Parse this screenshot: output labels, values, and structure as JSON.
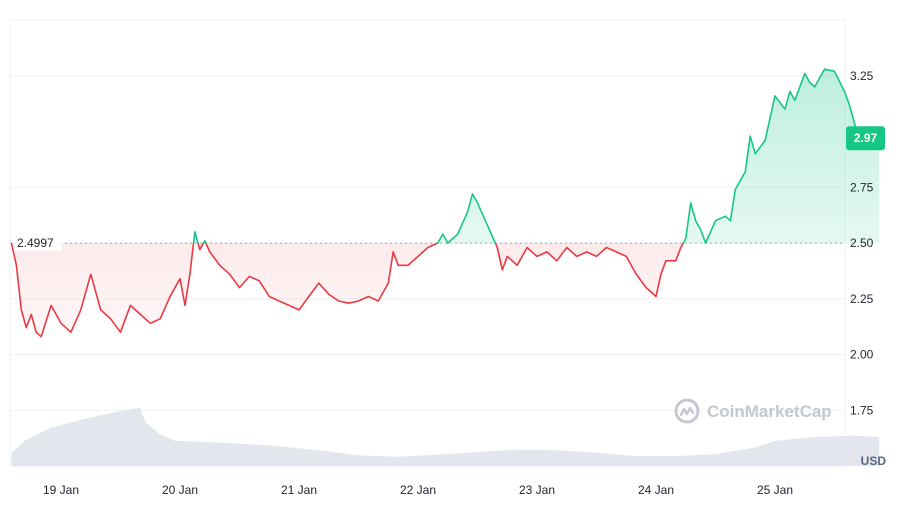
{
  "chart_data": {
    "type": "line",
    "title": "",
    "xlabel": "",
    "ylabel": "",
    "currency": "USD",
    "x_ticks": [
      "19 Jan",
      "20 Jan",
      "21 Jan",
      "22 Jan",
      "23 Jan",
      "24 Jan",
      "25 Jan"
    ],
    "y_ticks": [
      "1.75",
      "2.00",
      "2.25",
      "2.50",
      "2.75",
      "3.25"
    ],
    "ylim": [
      1.5,
      3.5
    ],
    "reference_price": 2.4997,
    "reference_label": "2.4997",
    "current_price": 2.97,
    "current_label": "2.97",
    "grid": true,
    "colors": {
      "up": "#16c784",
      "down": "#ea3943",
      "volume": "#e3e6ec",
      "grid": "#eff2f5",
      "watermark": "#c3c8d2"
    },
    "series": [
      {
        "points": [
          [
            "18 Jan 14:00",
            2.5
          ],
          [
            "18 Jan 15:00",
            2.4
          ],
          [
            "18 Jan 16:00",
            2.2
          ],
          [
            "18 Jan 17:00",
            2.12
          ],
          [
            "18 Jan 18:00",
            2.18
          ],
          [
            "18 Jan 19:00",
            2.1
          ],
          [
            "18 Jan 20:00",
            2.08
          ],
          [
            "18 Jan 22:00",
            2.22
          ],
          [
            "19 Jan 00:00",
            2.14
          ],
          [
            "19 Jan 02:00",
            2.1
          ],
          [
            "19 Jan 04:00",
            2.2
          ],
          [
            "19 Jan 06:00",
            2.36
          ],
          [
            "19 Jan 08:00",
            2.2
          ],
          [
            "19 Jan 10:00",
            2.16
          ],
          [
            "19 Jan 12:00",
            2.1
          ],
          [
            "19 Jan 14:00",
            2.22
          ],
          [
            "19 Jan 16:00",
            2.18
          ],
          [
            "19 Jan 18:00",
            2.14
          ],
          [
            "19 Jan 20:00",
            2.16
          ],
          [
            "19 Jan 22:00",
            2.26
          ],
          [
            "20 Jan 00:00",
            2.34
          ],
          [
            "20 Jan 01:00",
            2.22
          ],
          [
            "20 Jan 02:00",
            2.36
          ],
          [
            "20 Jan 03:00",
            2.55
          ],
          [
            "20 Jan 04:00",
            2.47
          ],
          [
            "20 Jan 05:00",
            2.51
          ],
          [
            "20 Jan 06:00",
            2.46
          ],
          [
            "20 Jan 08:00",
            2.4
          ],
          [
            "20 Jan 10:00",
            2.36
          ],
          [
            "20 Jan 12:00",
            2.3
          ],
          [
            "20 Jan 14:00",
            2.35
          ],
          [
            "20 Jan 16:00",
            2.33
          ],
          [
            "20 Jan 18:00",
            2.26
          ],
          [
            "20 Jan 20:00",
            2.24
          ],
          [
            "20 Jan 22:00",
            2.22
          ],
          [
            "21 Jan 00:00",
            2.2
          ],
          [
            "21 Jan 02:00",
            2.26
          ],
          [
            "21 Jan 04:00",
            2.32
          ],
          [
            "21 Jan 06:00",
            2.27
          ],
          [
            "21 Jan 08:00",
            2.24
          ],
          [
            "21 Jan 10:00",
            2.23
          ],
          [
            "21 Jan 12:00",
            2.24
          ],
          [
            "21 Jan 14:00",
            2.26
          ],
          [
            "21 Jan 16:00",
            2.24
          ],
          [
            "21 Jan 18:00",
            2.32
          ],
          [
            "21 Jan 19:00",
            2.46
          ],
          [
            "21 Jan 20:00",
            2.4
          ],
          [
            "21 Jan 22:00",
            2.4
          ],
          [
            "22 Jan 00:00",
            2.44
          ],
          [
            "22 Jan 02:00",
            2.48
          ],
          [
            "22 Jan 04:00",
            2.5
          ],
          [
            "22 Jan 05:00",
            2.54
          ],
          [
            "22 Jan 06:00",
            2.5
          ],
          [
            "22 Jan 08:00",
            2.54
          ],
          [
            "22 Jan 10:00",
            2.64
          ],
          [
            "22 Jan 11:00",
            2.72
          ],
          [
            "22 Jan 12:00",
            2.68
          ],
          [
            "22 Jan 14:00",
            2.58
          ],
          [
            "22 Jan 16:00",
            2.48
          ],
          [
            "22 Jan 17:00",
            2.38
          ],
          [
            "22 Jan 18:00",
            2.44
          ],
          [
            "22 Jan 20:00",
            2.4
          ],
          [
            "22 Jan 22:00",
            2.48
          ],
          [
            "23 Jan 00:00",
            2.44
          ],
          [
            "23 Jan 02:00",
            2.46
          ],
          [
            "23 Jan 04:00",
            2.42
          ],
          [
            "23 Jan 06:00",
            2.48
          ],
          [
            "23 Jan 08:00",
            2.44
          ],
          [
            "23 Jan 10:00",
            2.46
          ],
          [
            "23 Jan 12:00",
            2.44
          ],
          [
            "23 Jan 14:00",
            2.48
          ],
          [
            "23 Jan 16:00",
            2.46
          ],
          [
            "23 Jan 18:00",
            2.44
          ],
          [
            "23 Jan 20:00",
            2.36
          ],
          [
            "23 Jan 22:00",
            2.3
          ],
          [
            "24 Jan 00:00",
            2.26
          ],
          [
            "24 Jan 01:00",
            2.36
          ],
          [
            "24 Jan 02:00",
            2.42
          ],
          [
            "24 Jan 04:00",
            2.42
          ],
          [
            "24 Jan 05:00",
            2.48
          ],
          [
            "24 Jan 06:00",
            2.52
          ],
          [
            "24 Jan 07:00",
            2.68
          ],
          [
            "24 Jan 08:00",
            2.6
          ],
          [
            "24 Jan 09:00",
            2.56
          ],
          [
            "24 Jan 10:00",
            2.5
          ],
          [
            "24 Jan 12:00",
            2.6
          ],
          [
            "24 Jan 14:00",
            2.62
          ],
          [
            "24 Jan 15:00",
            2.6
          ],
          [
            "24 Jan 16:00",
            2.74
          ],
          [
            "24 Jan 18:00",
            2.82
          ],
          [
            "24 Jan 19:00",
            2.98
          ],
          [
            "24 Jan 20:00",
            2.9
          ],
          [
            "24 Jan 22:00",
            2.96
          ],
          [
            "25 Jan 00:00",
            3.16
          ],
          [
            "25 Jan 02:00",
            3.1
          ],
          [
            "25 Jan 03:00",
            3.18
          ],
          [
            "25 Jan 04:00",
            3.14
          ],
          [
            "25 Jan 06:00",
            3.26
          ],
          [
            "25 Jan 07:00",
            3.22
          ],
          [
            "25 Jan 08:00",
            3.2
          ],
          [
            "25 Jan 10:00",
            3.28
          ],
          [
            "25 Jan 12:00",
            3.27
          ],
          [
            "25 Jan 14:00",
            3.18
          ],
          [
            "25 Jan 15:00",
            3.12
          ],
          [
            "25 Jan 16:00",
            3.04
          ],
          [
            "25 Jan 17:00",
            2.94
          ],
          [
            "25 Jan 18:00",
            3.02
          ],
          [
            "25 Jan 20:00",
            2.98
          ],
          [
            "25 Jan 21:00",
            2.97
          ]
        ]
      }
    ],
    "volume": [
      [
        "18 Jan 14:00",
        0.2
      ],
      [
        "18 Jan 17:00",
        0.4
      ],
      [
        "18 Jan 22:00",
        0.58
      ],
      [
        "19 Jan 04:00",
        0.7
      ],
      [
        "19 Jan 10:00",
        0.8
      ],
      [
        "19 Jan 14:00",
        0.86
      ],
      [
        "19 Jan 16:00",
        0.88
      ],
      [
        "19 Jan 17:00",
        0.66
      ],
      [
        "19 Jan 20:00",
        0.48
      ],
      [
        "19 Jan 23:00",
        0.38
      ],
      [
        "20 Jan 06:00",
        0.36
      ],
      [
        "20 Jan 12:00",
        0.34
      ],
      [
        "20 Jan 20:00",
        0.3
      ],
      [
        "21 Jan 04:00",
        0.24
      ],
      [
        "21 Jan 12:00",
        0.16
      ],
      [
        "21 Jan 20:00",
        0.14
      ],
      [
        "22 Jan 04:00",
        0.17
      ],
      [
        "22 Jan 12:00",
        0.21
      ],
      [
        "22 Jan 20:00",
        0.25
      ],
      [
        "23 Jan 04:00",
        0.24
      ],
      [
        "23 Jan 12:00",
        0.2
      ],
      [
        "23 Jan 20:00",
        0.15
      ],
      [
        "24 Jan 04:00",
        0.15
      ],
      [
        "24 Jan 12:00",
        0.18
      ],
      [
        "24 Jan 20:00",
        0.28
      ],
      [
        "25 Jan 00:00",
        0.38
      ],
      [
        "25 Jan 08:00",
        0.44
      ],
      [
        "25 Jan 16:00",
        0.46
      ],
      [
        "25 Jan 21:00",
        0.44
      ]
    ]
  },
  "watermark": {
    "text": "CoinMarketCap",
    "icon": "coinmarketcap-logo-icon"
  }
}
